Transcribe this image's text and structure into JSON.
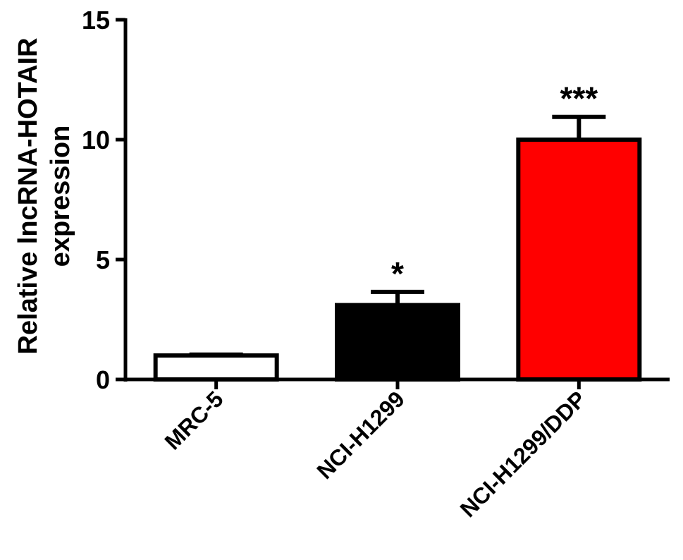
{
  "chart_data": {
    "type": "bar",
    "categories": [
      "MRC-5",
      "NCI-H1299",
      "NCI-H1299/DDP"
    ],
    "values": [
      1.0,
      3.1,
      10.0
    ],
    "errors": [
      0.05,
      0.55,
      0.95
    ],
    "significance": [
      "",
      "*",
      "***"
    ],
    "bar_colors": [
      "#ffffff",
      "#000000",
      "#ff0000"
    ],
    "bar_stroke": "#000000",
    "title": "",
    "xlabel": "",
    "ylabel_lines": [
      "Relative lncRNA-HOTAIR",
      "expression"
    ],
    "ylim": [
      0,
      15
    ],
    "yticks": [
      0,
      5,
      10,
      15
    ],
    "ytick_labels": [
      "0",
      "5",
      "10",
      "15"
    ],
    "grid": false,
    "legend": "none"
  }
}
